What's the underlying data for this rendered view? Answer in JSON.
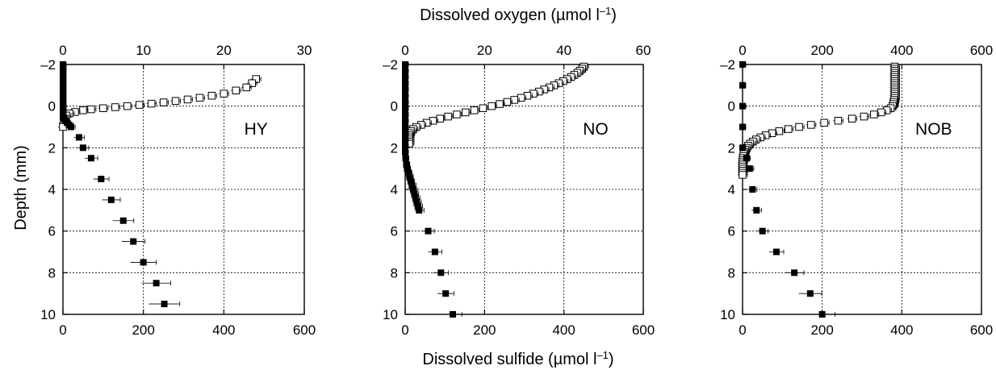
{
  "figure": {
    "top_title": "Dissolved oxygen (µmol l",
    "top_title_sup": "–1",
    "top_title_end": ")",
    "bottom_title": "Dissolved sulfide (µmol l",
    "bottom_title_sup": "–1",
    "bottom_title_end": ")",
    "ylabel": "Depth (mm)",
    "y_ticks": [
      "–2",
      "0",
      "2",
      "4",
      "6",
      "8",
      "10"
    ]
  },
  "chart_data": [
    {
      "type": "scatter",
      "panel": "HY",
      "grid": true,
      "ylim": [
        -2,
        10
      ],
      "y_inverted": true,
      "top_axis": {
        "range": [
          0,
          30
        ],
        "ticks": [
          "0",
          "10",
          "20",
          "30"
        ]
      },
      "bottom_axis": {
        "range": [
          0,
          600
        ],
        "ticks": [
          "0",
          "200",
          "400",
          "600"
        ]
      },
      "series": [
        {
          "axis": "top",
          "marker": "open-square",
          "points": [
            [
              24.0,
              -1.3
            ],
            [
              23.5,
              -1.1
            ],
            [
              22.8,
              -0.9
            ],
            [
              21.5,
              -0.75
            ],
            [
              20.0,
              -0.6
            ],
            [
              18.5,
              -0.5
            ],
            [
              17.0,
              -0.4
            ],
            [
              15.5,
              -0.32
            ],
            [
              14.0,
              -0.25
            ],
            [
              12.5,
              -0.18
            ],
            [
              11.0,
              -0.12
            ],
            [
              9.5,
              -0.06
            ],
            [
              8.0,
              0.0
            ],
            [
              6.5,
              0.05
            ],
            [
              5.0,
              0.1
            ],
            [
              3.5,
              0.15
            ],
            [
              2.5,
              0.2
            ],
            [
              1.5,
              0.28
            ],
            [
              0.8,
              0.35
            ],
            [
              0.4,
              0.45
            ],
            [
              0.2,
              0.6
            ],
            [
              0.1,
              0.8
            ],
            [
              0.0,
              1.0
            ]
          ]
        },
        {
          "axis": "bottom",
          "marker": "filled-square",
          "points": [
            [
              0,
              -2.0
            ],
            [
              0,
              -1.8
            ],
            [
              0,
              -1.6
            ],
            [
              0,
              -1.4
            ],
            [
              0,
              -1.2
            ],
            [
              0,
              -1.0
            ],
            [
              0,
              -0.8
            ],
            [
              0,
              -0.6
            ],
            [
              0,
              -0.4
            ],
            [
              0,
              -0.2
            ],
            [
              0,
              0.0
            ],
            [
              0,
              0.2
            ],
            [
              0,
              0.4
            ],
            [
              0,
              0.5
            ],
            [
              2,
              0.6
            ],
            [
              5,
              0.7
            ],
            [
              10,
              0.8
            ],
            [
              15,
              0.9
            ],
            [
              20,
              1.0
            ],
            [
              40,
              1.5
            ],
            [
              50,
              2.0
            ],
            [
              70,
              2.5
            ],
            [
              95,
              3.5
            ],
            [
              120,
              4.5
            ],
            [
              150,
              5.5
            ],
            [
              175,
              6.5
            ],
            [
              200,
              7.5
            ],
            [
              232,
              8.5
            ],
            [
              252,
              9.5
            ]
          ]
        }
      ]
    },
    {
      "type": "scatter",
      "panel": "NO",
      "grid": true,
      "ylim": [
        -2,
        10
      ],
      "y_inverted": true,
      "top_axis": {
        "range": [
          0,
          60
        ],
        "ticks": [
          "0",
          "20",
          "40",
          "60"
        ]
      },
      "bottom_axis": {
        "range": [
          0,
          600
        ],
        "ticks": [
          "0",
          "200",
          "400",
          "600"
        ]
      },
      "series": [
        {
          "axis": "top",
          "marker": "open-square",
          "points": [
            [
              45.0,
              -1.9
            ],
            [
              44.6,
              -1.8
            ],
            [
              44.0,
              -1.7
            ],
            [
              43.4,
              -1.6
            ],
            [
              42.6,
              -1.5
            ],
            [
              41.8,
              -1.4
            ],
            [
              40.8,
              -1.3
            ],
            [
              39.8,
              -1.2
            ],
            [
              38.7,
              -1.1
            ],
            [
              37.5,
              -1.0
            ],
            [
              36.3,
              -0.9
            ],
            [
              35.0,
              -0.8
            ],
            [
              33.7,
              -0.7
            ],
            [
              32.3,
              -0.6
            ],
            [
              30.8,
              -0.5
            ],
            [
              29.2,
              -0.4
            ],
            [
              27.5,
              -0.3
            ],
            [
              25.7,
              -0.2
            ],
            [
              23.8,
              -0.1
            ],
            [
              21.8,
              0.0
            ],
            [
              19.6,
              0.1
            ],
            [
              17.4,
              0.2
            ],
            [
              15.2,
              0.3
            ],
            [
              13.0,
              0.4
            ],
            [
              10.8,
              0.5
            ],
            [
              8.8,
              0.6
            ],
            [
              7.0,
              0.7
            ],
            [
              5.4,
              0.8
            ],
            [
              4.0,
              0.9
            ],
            [
              2.8,
              1.0
            ],
            [
              2.0,
              1.1
            ],
            [
              1.5,
              1.2
            ],
            [
              1.2,
              1.3
            ],
            [
              1.0,
              1.4
            ],
            [
              1.0,
              1.5
            ],
            [
              1.0,
              1.6
            ],
            [
              1.0,
              1.7
            ],
            [
              1.0,
              1.8
            ]
          ]
        },
        {
          "axis": "bottom",
          "marker": "filled-square",
          "points": [
            [
              0,
              -2.0
            ],
            [
              0,
              -1.7
            ],
            [
              0,
              -1.4
            ],
            [
              0,
              -1.1
            ],
            [
              0,
              -0.8
            ],
            [
              0,
              -0.5
            ],
            [
              0,
              -0.2
            ],
            [
              0,
              0.1
            ],
            [
              0,
              0.4
            ],
            [
              0,
              0.7
            ],
            [
              0,
              1.0
            ],
            [
              0,
              1.3
            ],
            [
              0,
              1.6
            ],
            [
              0,
              1.9
            ],
            [
              0,
              2.2
            ],
            [
              1,
              2.5
            ],
            [
              3,
              2.8
            ],
            [
              5,
              3.0
            ],
            [
              8,
              3.2
            ],
            [
              11,
              3.4
            ],
            [
              14,
              3.6
            ],
            [
              17,
              3.8
            ],
            [
              20,
              4.0
            ],
            [
              23,
              4.2
            ],
            [
              26,
              4.4
            ],
            [
              29,
              4.6
            ],
            [
              32,
              4.8
            ],
            [
              35,
              5.0
            ],
            [
              58,
              6.0
            ],
            [
              75,
              7.0
            ],
            [
              90,
              8.0
            ],
            [
              102,
              9.0
            ],
            [
              120,
              10.0
            ]
          ]
        }
      ]
    },
    {
      "type": "scatter",
      "panel": "NOB",
      "grid": true,
      "ylim": [
        -2,
        10
      ],
      "y_inverted": true,
      "top_axis": {
        "range": [
          0,
          600
        ],
        "ticks": [
          "0",
          "200",
          "400",
          "600"
        ]
      },
      "bottom_axis": {
        "range": [
          0,
          600
        ],
        "ticks": [
          "0",
          "200",
          "400",
          "600"
        ]
      },
      "series": [
        {
          "axis": "top",
          "marker": "open-square",
          "points": [
            [
              382,
              -1.9
            ],
            [
              382,
              -1.8
            ],
            [
              382,
              -1.7
            ],
            [
              382,
              -1.6
            ],
            [
              382,
              -1.5
            ],
            [
              382,
              -1.4
            ],
            [
              382,
              -1.3
            ],
            [
              382,
              -1.2
            ],
            [
              382,
              -1.1
            ],
            [
              382,
              -1.0
            ],
            [
              382,
              -0.9
            ],
            [
              382,
              -0.8
            ],
            [
              382,
              -0.7
            ],
            [
              382,
              -0.6
            ],
            [
              382,
              -0.5
            ],
            [
              382,
              -0.4
            ],
            [
              381,
              -0.3
            ],
            [
              380,
              -0.2
            ],
            [
              379,
              -0.1
            ],
            [
              377,
              0.0
            ],
            [
              372,
              0.1
            ],
            [
              362,
              0.2
            ],
            [
              348,
              0.3
            ],
            [
              330,
              0.4
            ],
            [
              305,
              0.5
            ],
            [
              275,
              0.6
            ],
            [
              240,
              0.7
            ],
            [
              205,
              0.8
            ],
            [
              172,
              0.9
            ],
            [
              142,
              1.0
            ],
            [
              115,
              1.1
            ],
            [
              92,
              1.2
            ],
            [
              74,
              1.3
            ],
            [
              58,
              1.4
            ],
            [
              45,
              1.5
            ],
            [
              34,
              1.6
            ],
            [
              26,
              1.7
            ],
            [
              19,
              1.8
            ],
            [
              14,
              1.9
            ],
            [
              10,
              2.0
            ],
            [
              7,
              2.1
            ],
            [
              5,
              2.2
            ],
            [
              3,
              2.3
            ],
            [
              2,
              2.4
            ],
            [
              1,
              2.5
            ],
            [
              1,
              2.6
            ],
            [
              0,
              2.7
            ],
            [
              0,
              2.8
            ],
            [
              0,
              2.9
            ],
            [
              0,
              3.0
            ],
            [
              0,
              3.1
            ],
            [
              0,
              3.2
            ],
            [
              0,
              3.3
            ]
          ]
        },
        {
          "axis": "bottom",
          "marker": "filled-square",
          "points": [
            [
              0,
              -2.0
            ],
            [
              0,
              -1.0
            ],
            [
              0,
              0.0
            ],
            [
              0,
              1.0
            ],
            [
              0,
              2.0
            ],
            [
              10,
              2.5
            ],
            [
              18,
              3.0
            ],
            [
              25,
              4.0
            ],
            [
              35,
              5.0
            ],
            [
              50,
              6.0
            ],
            [
              85,
              7.0
            ],
            [
              130,
              8.0
            ],
            [
              170,
              9.0
            ],
            [
              200,
              10.0
            ]
          ]
        }
      ]
    }
  ]
}
